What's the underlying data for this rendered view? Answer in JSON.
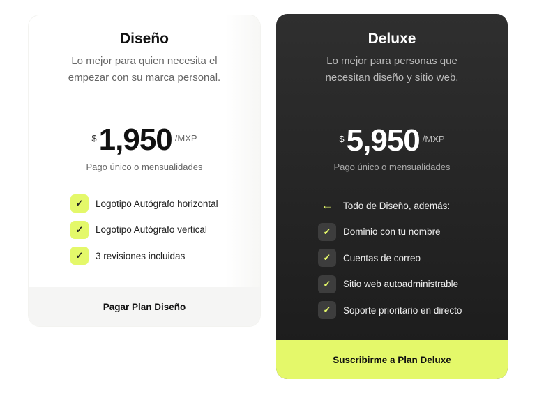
{
  "colors": {
    "accent": "#e4f86a",
    "dark_card": "#1f1f1f"
  },
  "plans": [
    {
      "name": "Diseño",
      "description_line1": "Lo mejor para quien necesita el",
      "description_line2": "empezar con su marca personal.",
      "currency": "$",
      "price": "1,950",
      "unit": "/MXP",
      "payment_note": "Pago único o mensualidades",
      "features": [
        "Logotipo Autógrafo horizontal",
        "Logotipo Autógrafo vertical",
        "3 revisiones incluidas"
      ],
      "button": "Pagar Plan Diseño"
    },
    {
      "name": "Deluxe",
      "description_line1": "Lo mejor para personas que",
      "description_line2": "necesitan diseño y sitio web.",
      "currency": "$",
      "price": "5,950",
      "unit": "/MXP",
      "payment_note": "Pago único o mensualidades",
      "includes": "Todo de Diseño, además:",
      "features": [
        "Dominio con tu nombre",
        "Cuentas de correo",
        "Sitio web autoadministrable",
        "Soporte prioritario en directo"
      ],
      "button": "Suscribirme a Plan Deluxe"
    }
  ]
}
